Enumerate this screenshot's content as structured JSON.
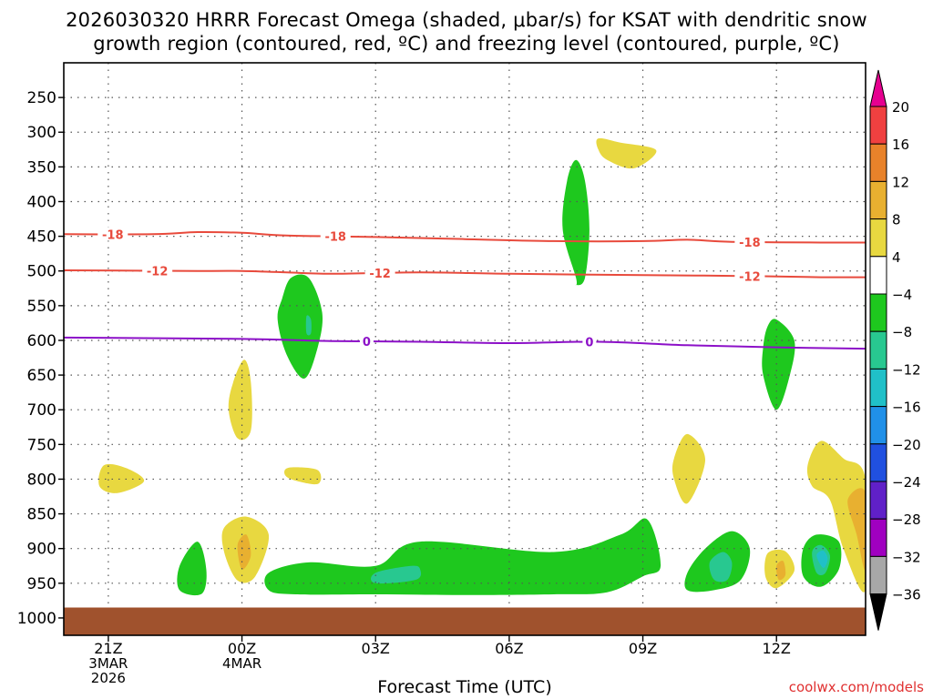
{
  "chart_data": {
    "type": "contour",
    "title_line1": "2026030320 HRRR Forecast Omega (shaded, μbar/s) for KSAT with dendritic snow",
    "title_line2": "growth region (contoured, red, ºC) and freezing level (contoured, purple, ºC)",
    "xlabel": "Forecast Time (UTC)",
    "credit": "coolwx.com/models",
    "x_range_hours": [
      -1,
      17
    ],
    "y_range_hPa": [
      200,
      1025
    ],
    "x_ticks": [
      {
        "hour": 0,
        "lines": [
          "21Z",
          "3MAR",
          "2026"
        ]
      },
      {
        "hour": 3,
        "lines": [
          "00Z",
          "4MAR"
        ]
      },
      {
        "hour": 6,
        "lines": [
          "03Z"
        ]
      },
      {
        "hour": 9,
        "lines": [
          "06Z"
        ]
      },
      {
        "hour": 12,
        "lines": [
          "09Z"
        ]
      },
      {
        "hour": 15,
        "lines": [
          "12Z"
        ]
      }
    ],
    "y_ticks": [
      250,
      300,
      350,
      400,
      450,
      500,
      550,
      600,
      650,
      700,
      750,
      800,
      850,
      900,
      950,
      1000
    ],
    "ground_level_hPa": 985,
    "colorbar": {
      "levels": [
        "20",
        "16",
        "12",
        "8",
        "4",
        "−4",
        "−8",
        "−12",
        "−16",
        "−20",
        "−24",
        "−28",
        "−32",
        "−36"
      ],
      "colors": [
        "#e60090",
        "#f04040",
        "#e8822a",
        "#e8b030",
        "#e8d840",
        "#ffffff",
        "#1ec81e",
        "#28c890",
        "#20c0c8",
        "#2090e8",
        "#2050e0",
        "#6020c8",
        "#a000c0",
        "#a8a8a8",
        "#000000"
      ]
    },
    "isotherms": [
      {
        "name": "-18",
        "color": "#e84a3c",
        "points": [
          [
            -1,
            447
          ],
          [
            1,
            447
          ],
          [
            2,
            444
          ],
          [
            3,
            445
          ],
          [
            4,
            449
          ],
          [
            6,
            451
          ],
          [
            8,
            454
          ],
          [
            10,
            457
          ],
          [
            12,
            457
          ],
          [
            13,
            455
          ],
          [
            14,
            458
          ],
          [
            16,
            459
          ],
          [
            17,
            459
          ]
        ],
        "labels": [
          {
            "label": "-18",
            "hour": 0.1
          },
          {
            "label": "-18",
            "hour": 5.1
          },
          {
            "label": "-18",
            "hour": 14.4
          }
        ]
      },
      {
        "name": "-12",
        "color": "#e84a3c",
        "points": [
          [
            -1,
            499
          ],
          [
            2,
            500
          ],
          [
            3,
            500
          ],
          [
            4,
            502
          ],
          [
            5,
            504
          ],
          [
            7,
            502
          ],
          [
            9,
            504
          ],
          [
            12,
            506
          ],
          [
            14,
            507
          ],
          [
            16,
            509
          ],
          [
            17,
            509
          ]
        ],
        "labels": [
          {
            "label": "-12",
            "hour": 1.1
          },
          {
            "label": "-12",
            "hour": 6.1
          },
          {
            "label": "-12",
            "hour": 14.4
          }
        ]
      },
      {
        "name": "0",
        "color": "#8c10c8",
        "points": [
          [
            -1,
            596
          ],
          [
            3,
            598
          ],
          [
            5,
            601
          ],
          [
            7,
            602
          ],
          [
            9,
            604
          ],
          [
            11,
            602
          ],
          [
            13,
            607
          ],
          [
            15,
            610
          ],
          [
            17,
            612
          ]
        ],
        "labels": [
          {
            "label": "0",
            "hour": 5.8
          },
          {
            "label": "0",
            "hour": 10.8
          }
        ]
      }
    ],
    "omega_regions": [
      {
        "level": "4",
        "color": "#e8d840",
        "points": [
          [
            -0.1,
            780
          ],
          [
            0.4,
            784
          ],
          [
            0.8,
            803
          ],
          [
            0.2,
            820
          ],
          [
            -0.2,
            810
          ]
        ]
      },
      {
        "level": "4",
        "color": "#e8d840",
        "points": [
          [
            2.8,
            661
          ],
          [
            3.05,
            628
          ],
          [
            3.2,
            660
          ],
          [
            3.2,
            730
          ],
          [
            2.9,
            741
          ],
          [
            2.7,
            700
          ]
        ]
      },
      {
        "level": "4",
        "color": "#e8d840",
        "points": [
          [
            4.1,
            783
          ],
          [
            4.7,
            787
          ],
          [
            4.7,
            807
          ],
          [
            4.1,
            800
          ],
          [
            3.95,
            790
          ]
        ]
      },
      {
        "level": "4",
        "color": "#e8d840",
        "points": [
          [
            2.6,
            870
          ],
          [
            3.1,
            854
          ],
          [
            3.6,
            880
          ],
          [
            3.3,
            940
          ],
          [
            2.9,
            946
          ],
          [
            2.6,
            905
          ]
        ]
      },
      {
        "level": "4",
        "color": "#e8d840",
        "points": [
          [
            11.0,
            309
          ],
          [
            11.5,
            315
          ],
          [
            12.3,
            326
          ],
          [
            11.8,
            352
          ],
          [
            11.2,
            340
          ],
          [
            11.0,
            325
          ]
        ]
      },
      {
        "level": "4",
        "color": "#e8d840",
        "points": [
          [
            12.7,
            770
          ],
          [
            13.0,
            735
          ],
          [
            13.4,
            772
          ],
          [
            13.0,
            835
          ],
          [
            12.7,
            800
          ]
        ]
      },
      {
        "level": "4",
        "color": "#e8d840",
        "points": [
          [
            14.8,
            907
          ],
          [
            15.2,
            904
          ],
          [
            15.4,
            932
          ],
          [
            15.0,
            957
          ],
          [
            14.75,
            940
          ]
        ]
      },
      {
        "level": "4",
        "color": "#e8d840",
        "points": [
          [
            15.7,
            780
          ],
          [
            16.0,
            745
          ],
          [
            16.5,
            770
          ],
          [
            17.0,
            800
          ],
          [
            17.0,
            960
          ],
          [
            16.5,
            900
          ],
          [
            16.2,
            830
          ],
          [
            15.8,
            810
          ]
        ]
      },
      {
        "level": "8",
        "color": "#e8b030",
        "points": [
          [
            16.6,
            830
          ],
          [
            17.0,
            820
          ],
          [
            17.0,
            930
          ],
          [
            16.8,
            880
          ]
        ]
      },
      {
        "level": "8",
        "color": "#e8b030",
        "points": [
          [
            2.9,
            895
          ],
          [
            3.1,
            880
          ],
          [
            3.2,
            910
          ],
          [
            3.0,
            930
          ]
        ]
      },
      {
        "level": "8",
        "color": "#e8b030",
        "points": [
          [
            15.0,
            925
          ],
          [
            15.15,
            918
          ],
          [
            15.2,
            938
          ],
          [
            15.05,
            945
          ]
        ]
      },
      {
        "level": "-4",
        "color": "#1ec81e",
        "points": [
          [
            1.6,
            925
          ],
          [
            2.0,
            890
          ],
          [
            2.2,
            930
          ],
          [
            2.1,
            965
          ],
          [
            1.6,
            960
          ]
        ]
      },
      {
        "level": "-4",
        "color": "#1ec81e",
        "points": [
          [
            3.6,
            935
          ],
          [
            4.5,
            920
          ],
          [
            6,
            925
          ],
          [
            7,
            890
          ],
          [
            10,
            905
          ],
          [
            11.5,
            880
          ],
          [
            12.1,
            858
          ],
          [
            12.4,
            925
          ],
          [
            12.0,
            940
          ],
          [
            11.2,
            963
          ],
          [
            10,
            966
          ],
          [
            8,
            967
          ],
          [
            6,
            966
          ],
          [
            4.2,
            966
          ],
          [
            3.6,
            960
          ]
        ]
      },
      {
        "level": "-4",
        "color": "#1ec81e",
        "points": [
          [
            10.5,
            510
          ],
          [
            10.2,
            440
          ],
          [
            10.3,
            370
          ],
          [
            10.5,
            340
          ],
          [
            10.7,
            370
          ],
          [
            10.8,
            440
          ],
          [
            10.7,
            510
          ],
          [
            10.5,
            520
          ]
        ]
      },
      {
        "level": "-4",
        "color": "#1ec81e",
        "points": [
          [
            3.9,
            540
          ],
          [
            4.1,
            510
          ],
          [
            4.5,
            510
          ],
          [
            4.8,
            560
          ],
          [
            4.7,
            610
          ],
          [
            4.4,
            655
          ],
          [
            4.0,
            620
          ],
          [
            3.8,
            570
          ]
        ]
      },
      {
        "level": "-4",
        "color": "#1ec81e",
        "points": [
          [
            14.8,
            580
          ],
          [
            15.0,
            570
          ],
          [
            15.4,
            600
          ],
          [
            15.3,
            650
          ],
          [
            15.0,
            700
          ],
          [
            14.7,
            650
          ],
          [
            14.7,
            610
          ]
        ]
      },
      {
        "level": "-4",
        "color": "#1ec81e",
        "points": [
          [
            13.0,
            935
          ],
          [
            13.4,
            900
          ],
          [
            14.0,
            875
          ],
          [
            14.4,
            900
          ],
          [
            14.2,
            945
          ],
          [
            13.6,
            960
          ],
          [
            13.0,
            960
          ]
        ]
      },
      {
        "level": "-4",
        "color": "#1ec81e",
        "points": [
          [
            15.6,
            900
          ],
          [
            15.9,
            880
          ],
          [
            16.4,
            890
          ],
          [
            16.4,
            930
          ],
          [
            16.0,
            955
          ],
          [
            15.6,
            940
          ]
        ]
      },
      {
        "level": "-8",
        "color": "#28c890",
        "points": [
          [
            4.45,
            565
          ],
          [
            4.55,
            570
          ],
          [
            4.55,
            590
          ],
          [
            4.45,
            590
          ]
        ]
      },
      {
        "level": "-8",
        "color": "#28c890",
        "points": [
          [
            6,
            935
          ],
          [
            6.8,
            925
          ],
          [
            7.0,
            930
          ],
          [
            6.9,
            945
          ],
          [
            6.0,
            950
          ]
        ]
      },
      {
        "level": "-8",
        "color": "#28c890",
        "points": [
          [
            13.5,
            920
          ],
          [
            13.8,
            905
          ],
          [
            14.0,
            920
          ],
          [
            13.9,
            945
          ],
          [
            13.6,
            945
          ]
        ]
      },
      {
        "level": "-8",
        "color": "#28c890",
        "points": [
          [
            15.8,
            905
          ],
          [
            16.0,
            895
          ],
          [
            16.2,
            910
          ],
          [
            16.1,
            935
          ],
          [
            15.9,
            935
          ]
        ]
      },
      {
        "level": "-12",
        "color": "#20c0c8",
        "points": [
          [
            15.9,
            910
          ],
          [
            16.05,
            903
          ],
          [
            16.15,
            915
          ],
          [
            16.05,
            928
          ]
        ]
      }
    ]
  }
}
